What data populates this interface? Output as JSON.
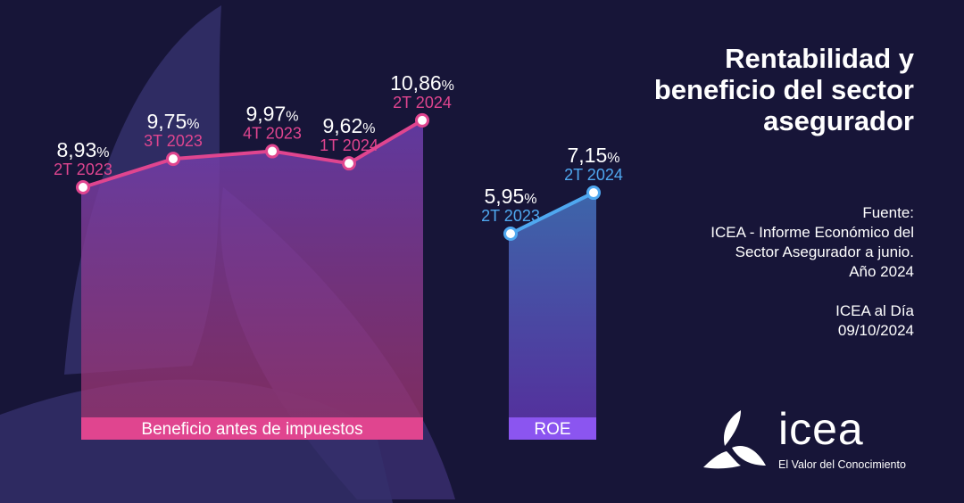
{
  "title": [
    "Rentabilidad y",
    "beneficio del sector",
    "asegurador"
  ],
  "source": {
    "label": "Fuente:",
    "lines": [
      "ICEA - Informe Económico del",
      "Sector Asegurador a junio.",
      "Año 2024"
    ],
    "publication": "ICEA al Día",
    "date": "09/10/2024"
  },
  "logo": {
    "name": "icea",
    "tagline": "El Valor del Conocimiento"
  },
  "colors": {
    "background": "#171538",
    "beneficio": "#e0458f",
    "roe_line": "#4fa8f0",
    "roe_bar": "#8b55f0"
  },
  "chart_data": [
    {
      "type": "area",
      "title": "Beneficio antes de impuestos",
      "categories": [
        "2T 2023",
        "3T 2023",
        "4T 2023",
        "1T 2024",
        "2T 2024"
      ],
      "values": [
        8.93,
        9.75,
        9.97,
        9.62,
        10.86
      ],
      "value_labels": [
        "8,93",
        "9,75",
        "9,97",
        "9,62",
        "10,86"
      ],
      "unit": "%"
    },
    {
      "type": "area",
      "title": "ROE",
      "categories": [
        "2T 2023",
        "2T 2024"
      ],
      "values": [
        5.95,
        7.15
      ],
      "value_labels": [
        "5,95",
        "7,15"
      ],
      "unit": "%"
    }
  ]
}
